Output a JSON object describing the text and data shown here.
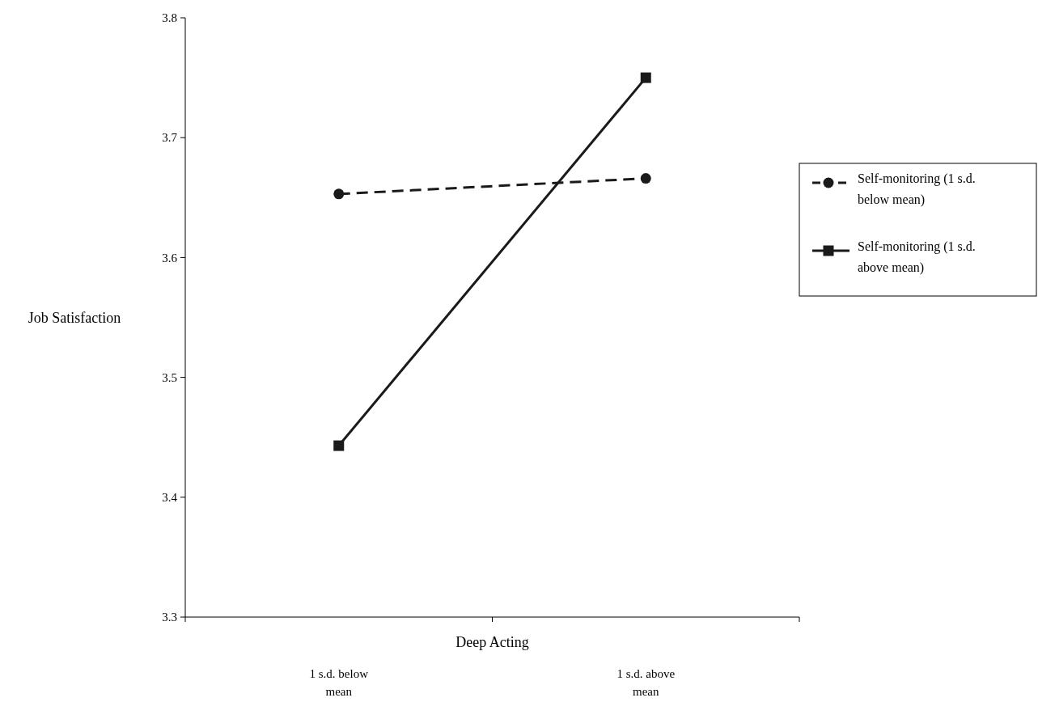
{
  "chart_data": {
    "type": "line",
    "xlabel": "Deep Acting",
    "ylabel": "Job Satisfaction",
    "categories": [
      "1 s.d. below mean",
      "1 s.d. above mean"
    ],
    "ylim": [
      3.3,
      3.8
    ],
    "yticks": [
      3.3,
      3.4,
      3.5,
      3.6,
      3.7,
      3.8
    ],
    "grid": false,
    "legend": "right",
    "series": [
      {
        "name": "Self-monitoring (1 s.d. below mean)",
        "color": "#1a1a1a",
        "values": [
          3.653,
          3.666
        ],
        "marker": "circle",
        "line_style": "dashed"
      },
      {
        "name": "Self-monitoring (1 s.d. above mean)",
        "color": "#1a1a1a",
        "values": [
          3.443,
          3.75
        ],
        "marker": "square",
        "line_style": "solid"
      }
    ]
  }
}
